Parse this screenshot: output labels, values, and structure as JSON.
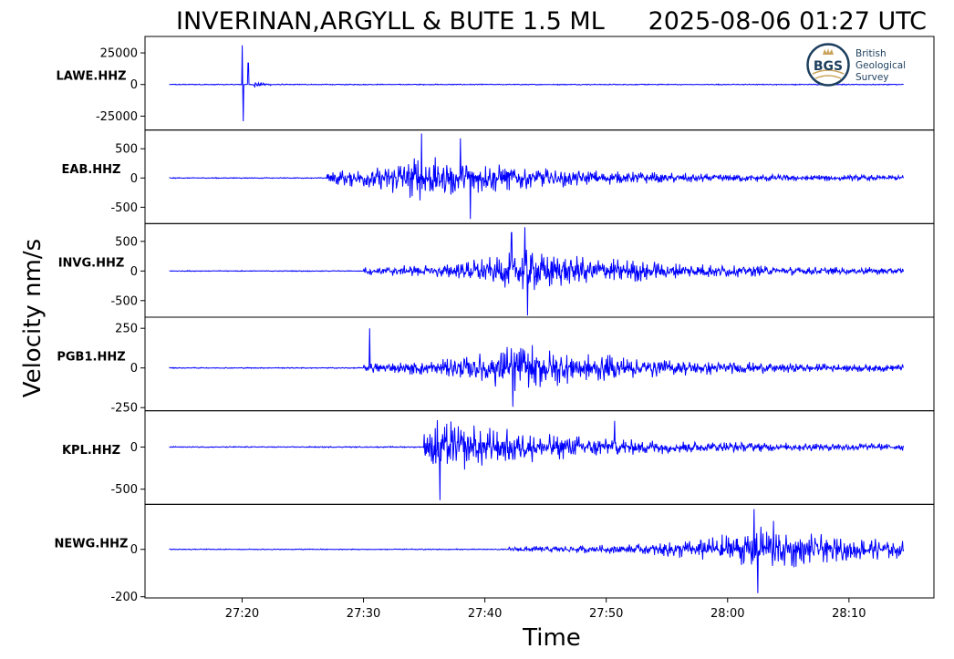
{
  "title_left": "INVERINAN,ARGYLL & BUTE 1.5 ML",
  "title_right": "2025-08-06 01:27 UTC",
  "ylabel": "Velocity nm/s",
  "xlabel": "Time",
  "logo": {
    "abbrev": "BGS",
    "line1": "British",
    "line2": "Geological",
    "line3": "Survey",
    "color": "#1d3f5e",
    "accent": "#c8a45a"
  },
  "chart_data": {
    "type": "line",
    "x_unit": "time (MM:SS after 01:00 UTC)",
    "x_range": [
      "27:12",
      "28:17"
    ],
    "x_ticks": [
      "27:20",
      "27:30",
      "27:40",
      "27:50",
      "28:00",
      "28:10"
    ],
    "trace_start": "27:14",
    "trace_end": "28:14.5",
    "line_color": "#0000ff",
    "series": [
      {
        "name": "LAWE.HHZ",
        "ylim": [
          -36000,
          38000
        ],
        "yticks": [
          25000,
          0,
          -25000
        ],
        "ytick_labels": [
          "25000",
          "0",
          "-25000"
        ],
        "onset_s": 21,
        "events": [
          {
            "t": 20.0,
            "kind": "pos",
            "amp": 31000
          },
          {
            "t": 20.1,
            "kind": "neg",
            "amp": -29000
          },
          {
            "t": 20.5,
            "kind": "pos",
            "amp": 17000
          }
        ]
      },
      {
        "name": "EAB.HHZ",
        "ylim": [
          -780,
          820
        ],
        "yticks": [
          500,
          0,
          -500
        ],
        "ytick_labels": [
          "500",
          "0",
          "-500"
        ],
        "onset_s": 27,
        "events": [
          {
            "t": 34.8,
            "kind": "pos",
            "amp": 760
          },
          {
            "t": 38.8,
            "kind": "neg",
            "amp": -700
          },
          {
            "t": 38.0,
            "kind": "pos",
            "amp": 680
          }
        ]
      },
      {
        "name": "INVG.HHZ",
        "ylim": [
          -780,
          800
        ],
        "yticks": [
          500,
          0,
          -500
        ],
        "ytick_labels": [
          "500",
          "0",
          "-500"
        ],
        "onset_s": 30,
        "events": [
          {
            "t": 43.3,
            "kind": "pos",
            "amp": 740
          },
          {
            "t": 43.5,
            "kind": "neg",
            "amp": -750
          },
          {
            "t": 42.2,
            "kind": "pos",
            "amp": 650
          }
        ]
      },
      {
        "name": "PGB1.HHZ",
        "ylim": [
          -270,
          320
        ],
        "yticks": [
          250,
          0,
          -250
        ],
        "ytick_labels": [
          "250",
          "0",
          "-250"
        ],
        "onset_s": 30,
        "events": [
          {
            "t": 42.3,
            "kind": "pos",
            "amp": 295
          },
          {
            "t": 42.3,
            "kind": "neg",
            "amp": -245
          },
          {
            "t": 30.5,
            "kind": "pos",
            "amp": 250
          }
        ]
      },
      {
        "name": "KPL.HHZ",
        "ylim": [
          -680,
          430
        ],
        "yticks": [
          0,
          -500
        ],
        "ytick_labels": [
          "0",
          "-500"
        ],
        "onset_s": 35,
        "events": [
          {
            "t": 36.3,
            "kind": "pos",
            "amp": 340
          },
          {
            "t": 36.3,
            "kind": "neg",
            "amp": -630
          },
          {
            "t": 50.7,
            "kind": "pos",
            "amp": 310
          }
        ]
      },
      {
        "name": "NEWG.HHZ",
        "ylim": [
          -205,
          190
        ],
        "yticks": [
          0,
          -200
        ],
        "ytick_labels": [
          "0",
          "-200"
        ],
        "onset_s": 42,
        "events": [
          {
            "t": 62.2,
            "kind": "pos",
            "amp": 170
          },
          {
            "t": 62.5,
            "kind": "neg",
            "amp": -185
          },
          {
            "t": 63.8,
            "kind": "pos",
            "amp": 120
          }
        ]
      }
    ]
  }
}
